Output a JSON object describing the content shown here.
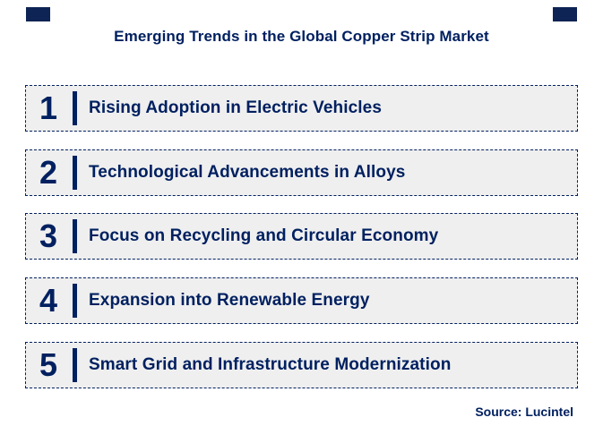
{
  "header": {
    "title": "Emerging Trends in the Global Copper Strip Market"
  },
  "trends": [
    {
      "number": "1",
      "label": "Rising Adoption in Electric Vehicles"
    },
    {
      "number": "2",
      "label": "Technological Advancements in Alloys"
    },
    {
      "number": "3",
      "label": "Focus on Recycling and Circular Economy"
    },
    {
      "number": "4",
      "label": "Expansion into Renewable Energy"
    },
    {
      "number": "5",
      "label": "Smart Grid and Infrastructure Modernization"
    }
  ],
  "footer": {
    "source_label": "Source: Lucintel"
  },
  "colors": {
    "navy": "#002060",
    "row_background": "#efefef",
    "corner_square": "#0d2455",
    "page_background": "#ffffff"
  }
}
